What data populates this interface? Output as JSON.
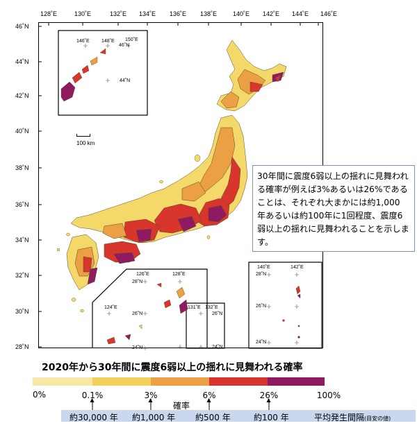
{
  "lon_ticks": [
    "128˚E",
    "130˚E",
    "132˚E",
    "134˚E",
    "136˚E",
    "138˚E",
    "140˚E",
    "142˚E",
    "144˚E",
    "146˚E"
  ],
  "lat_ticks": [
    "46˚N",
    "44˚N",
    "42˚N",
    "40˚N",
    "38˚N",
    "36˚N",
    "34˚N",
    "32˚N",
    "30˚N",
    "28˚N"
  ],
  "inset_north": {
    "lons": [
      "146˚E",
      "148˚E",
      "150˚E"
    ],
    "lats": [
      "46˚N",
      "44˚N"
    ]
  },
  "inset_south": {
    "lons": [
      "126˚E",
      "128˚E",
      "124˚E"
    ],
    "lats": [
      "28˚N",
      "26˚N",
      "24˚N"
    ]
  },
  "inset_small": {
    "lons": [
      "131˚E",
      "132˚E"
    ],
    "lats": [
      "26˚N",
      "24˚N"
    ]
  },
  "inset_east": {
    "lons": [
      "140˚E",
      "142˚E"
    ],
    "lats": [
      "28˚N",
      "26˚N",
      "24˚N"
    ]
  },
  "scale_label": "100 km",
  "note_text": "30年間に震度6弱以上の揺れに見舞われる確率が例えば3%あるいは26%であることは、それぞれ大まかには約1,000 年あるいは約100年に1回程度、震度6弱以上の揺れに見舞われることを示します。",
  "legend": {
    "title": "2020年から30年間に震度6弱以上の揺れに見舞われる確率",
    "colors": [
      "#f7e8a6",
      "#f2d15b",
      "#eba043",
      "#d8352d",
      "#8e1a62"
    ],
    "percent_labels": [
      "0%",
      "0.1%",
      "3%",
      "6%",
      "26%",
      "100%"
    ],
    "axis_label": "確率",
    "intervals": [
      "約30,000 年",
      "約1,000 年",
      "約500 年",
      "約100 年"
    ],
    "interval_caption": "平均発生間隔",
    "interval_note": "(目安の値)"
  }
}
